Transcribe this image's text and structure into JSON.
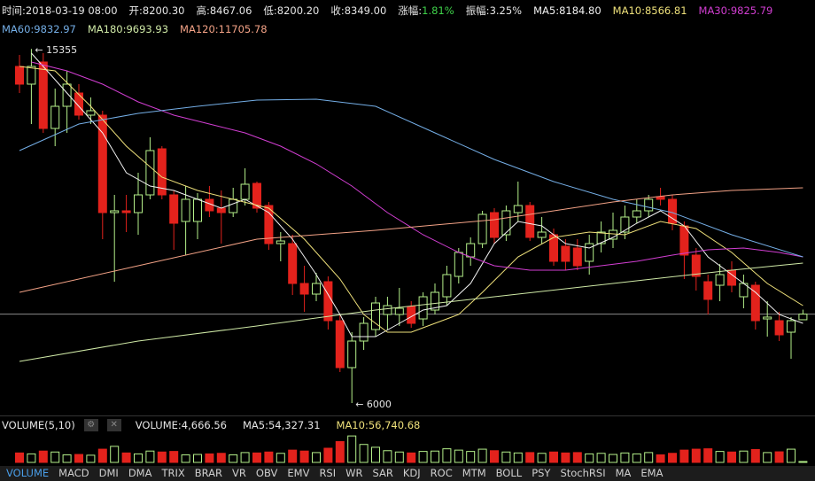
{
  "chart_data": {
    "type": "candlestick",
    "header": {
      "items": [
        {
          "label": "时间:",
          "value": "2018-03-19 08:00"
        },
        {
          "label": "开:",
          "value": "8200.30"
        },
        {
          "label": "高:",
          "value": "8467.06"
        },
        {
          "label": "低:",
          "value": "8200.20"
        },
        {
          "label": "收:",
          "value": "8349.00"
        },
        {
          "label": "涨幅:",
          "value": "1.81%",
          "color": "#3fd24a"
        },
        {
          "label": "振幅:",
          "value": "3.25%"
        }
      ]
    },
    "up_color": "#b5f08a",
    "down_color": "#e3221c",
    "ylim": [
      5696,
      16132
    ],
    "open": [
      14892,
      14424,
      15009,
      13254,
      13839,
      14190,
      13605,
      13605,
      11031,
      11078,
      11031,
      11499,
      12716,
      11499,
      10797,
      10797,
      11382,
      11148,
      11031,
      11382,
      11803,
      11218,
      10212,
      10212,
      9159,
      8878,
      9206,
      8176,
      6936,
      7638,
      7942,
      8340,
      8340,
      8551,
      8223,
      8457,
      8808,
      9346,
      9861,
      10212,
      11031,
      10446,
      11031,
      11218,
      10376,
      10446,
      10142,
      10095,
      9744,
      10212,
      10329,
      10516,
      10914,
      11078,
      11452,
      11382,
      10680,
      9908,
      9206,
      9112,
      9510,
      8808,
      9112,
      8223,
      8176,
      7872,
      8200.3
    ],
    "high": [
      15196,
      15355,
      15243,
      14307,
      14775,
      14424,
      14073,
      13722,
      11499,
      11499,
      12084,
      13020,
      12786,
      11616,
      11733,
      11546,
      11733,
      11616,
      11686,
      12201,
      11850,
      11312,
      10516,
      10446,
      9627,
      9440,
      9346,
      8340,
      7872,
      8270,
      8808,
      8808,
      9042,
      8691,
      8925,
      9159,
      9627,
      10095,
      10376,
      11078,
      11148,
      11218,
      11850,
      11312,
      10914,
      10610,
      10329,
      10329,
      10446,
      10797,
      11031,
      11218,
      11382,
      11499,
      11686,
      11499,
      10797,
      10095,
      9393,
      9674,
      9744,
      9393,
      9206,
      8691,
      8410,
      8270,
      8467.06
    ],
    "low": [
      14190,
      13371,
      13137,
      12786,
      13137,
      13488,
      13371,
      10329,
      9206,
      10516,
      10446,
      11382,
      11382,
      10048,
      9908,
      10329,
      10914,
      10212,
      10914,
      11218,
      11031,
      10048,
      9744,
      8855,
      8410,
      8691,
      7942,
      6819,
      6000,
      7404,
      7755,
      7942,
      8036,
      7989,
      8036,
      8340,
      8574,
      9159,
      9627,
      10095,
      10212,
      10282,
      10797,
      10282,
      10212,
      9627,
      9510,
      9510,
      9393,
      9978,
      10095,
      10329,
      10750,
      10914,
      11218,
      10563,
      9276,
      8972,
      8340,
      8691,
      8925,
      8504,
      7942,
      7755,
      7638,
      7170,
      8200.2
    ],
    "close": [
      14424,
      14892,
      13254,
      13839,
      14424,
      13605,
      13722,
      11031,
      11078,
      11031,
      11499,
      12669,
      11499,
      10750,
      11382,
      11382,
      11078,
      11031,
      11382,
      11780,
      11148,
      10212,
      10282,
      9159,
      8878,
      9159,
      8176,
      6936,
      7638,
      8106,
      8644,
      8574,
      8504,
      8106,
      8808,
      8925,
      9393,
      9978,
      10212,
      10984,
      10376,
      11078,
      11218,
      10376,
      10516,
      9744,
      9744,
      9627,
      10212,
      10516,
      10563,
      10914,
      11078,
      11382,
      11382,
      10750,
      9908,
      9346,
      8738,
      9393,
      9112,
      9159,
      8176,
      8270,
      7802,
      8176,
      8349
    ],
    "annotations": [
      {
        "text": "← 15355"
      },
      {
        "text": "← 6000"
      }
    ],
    "series": [
      {
        "name": "MA5:8184.80",
        "color": "#f2f2f2",
        "x": [
          1,
          3,
          5,
          7,
          9,
          11,
          13,
          15,
          17,
          19,
          21,
          23,
          25,
          27,
          28,
          30,
          32,
          34,
          36,
          38,
          40,
          42,
          44,
          46,
          48,
          50,
          52,
          54,
          56,
          58,
          60,
          62,
          64,
          66
        ],
        "values": [
          15243,
          14541,
          13839,
          13137,
          12084,
          11733,
          11616,
          11382,
          11148,
          11382,
          11031,
          10329,
          9393,
          8340,
          7755,
          7755,
          8106,
          8457,
          8574,
          9159,
          10212,
          10797,
          10680,
          10212,
          10095,
          10376,
          10750,
          11078,
          10680,
          9861,
          9393,
          8925,
          8340,
          8106
        ]
      },
      {
        "name": "MA10:8566.81",
        "color": "#eee07a",
        "x": [
          0,
          3,
          6,
          9,
          12,
          15,
          18,
          21,
          24,
          27,
          29,
          31,
          33,
          35,
          37,
          39,
          42,
          45,
          48,
          51,
          54,
          57,
          60,
          63,
          66
        ],
        "values": [
          14892,
          14775,
          13839,
          12786,
          11967,
          11616,
          11382,
          11148,
          10329,
          9276,
          8340,
          7872,
          7872,
          8106,
          8340,
          8925,
          9861,
          10376,
          10516,
          10446,
          10797,
          10610,
          9978,
          9159,
          8574
        ]
      },
      {
        "name": "MA30:9825.79",
        "color": "#d23ed2",
        "x": [
          1,
          4,
          7,
          10,
          13,
          16,
          19,
          22,
          25,
          28,
          31,
          34,
          37,
          40,
          43,
          46,
          49,
          52,
          55,
          58,
          61,
          64,
          66
        ],
        "values": [
          15009,
          14775,
          14424,
          13956,
          13605,
          13371,
          13137,
          12786,
          12318,
          11733,
          11031,
          10446,
          9978,
          9627,
          9510,
          9510,
          9627,
          9744,
          9908,
          10048,
          10095,
          9978,
          9861
        ]
      },
      {
        "name": "MA60:9832.97",
        "color": "#74aee6",
        "x": [
          0,
          5,
          10,
          15,
          20,
          25,
          30,
          35,
          40,
          45,
          50,
          55,
          60,
          66
        ],
        "values": [
          12669,
          13371,
          13652,
          13839,
          14003,
          14026,
          13839,
          13137,
          12435,
          11850,
          11382,
          11031,
          10446,
          9861
        ]
      },
      {
        "name": "MA180:9693.93",
        "color": "#cfe9a6",
        "x": [
          0,
          10,
          20,
          30,
          40,
          50,
          60,
          66
        ],
        "values": [
          7100,
          7638,
          8036,
          8457,
          8808,
          9159,
          9510,
          9697
        ]
      },
      {
        "name": "MA120:11705.78",
        "color": "#f3a286",
        "x": [
          0,
          10,
          20,
          30,
          40,
          50,
          55,
          60,
          66
        ],
        "values": [
          8925,
          9627,
          10329,
          10563,
          10844,
          11312,
          11499,
          11616,
          11686
        ]
      }
    ],
    "volume": {
      "title": "VOLUME(5,10)",
      "items": [
        {
          "text": "VOLUME:4,666.56",
          "color": "#e6e6e6"
        },
        {
          "text": "MA5:54,327.31",
          "color": "#e6e6e6"
        },
        {
          "text": "MA10:56,740.68",
          "color": "#eee07a"
        }
      ],
      "ylim": [
        0,
        150000
      ],
      "values": [
        50000,
        45000,
        60000,
        55000,
        40000,
        42000,
        38000,
        70000,
        85000,
        50000,
        45000,
        60000,
        55000,
        58000,
        40000,
        42000,
        45000,
        48000,
        40000,
        52000,
        50000,
        55000,
        48000,
        65000,
        60000,
        52000,
        75000,
        110000,
        140000,
        95000,
        80000,
        62000,
        55000,
        50000,
        58000,
        60000,
        72000,
        65000,
        58000,
        70000,
        62000,
        55000,
        50000,
        52000,
        48000,
        55000,
        50000,
        52000,
        45000,
        48000,
        42000,
        50000,
        45000,
        52000,
        40000,
        48000,
        65000,
        70000,
        72000,
        58000,
        55000,
        60000,
        68000,
        52000,
        56000,
        70000,
        4666.56
      ]
    },
    "tabs": [
      "VOLUME",
      "MACD",
      "DMI",
      "DMA",
      "TRIX",
      "BRAR",
      "VR",
      "OBV",
      "EMV",
      "RSI",
      "WR",
      "SAR",
      "KDJ",
      "ROC",
      "MTM",
      "BOLL",
      "PSY",
      "StochRSI",
      "MA",
      "EMA"
    ],
    "active_tab": 0
  }
}
